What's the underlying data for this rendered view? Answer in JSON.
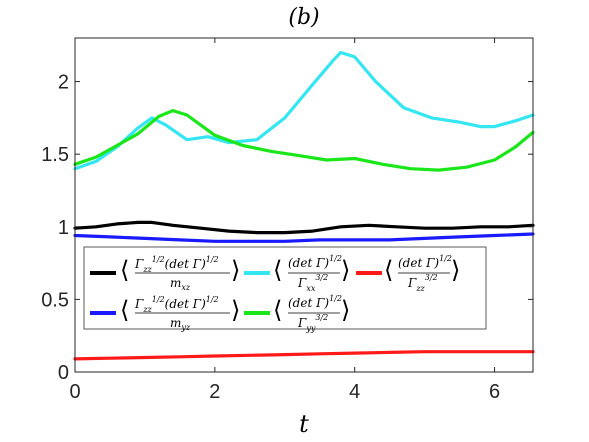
{
  "chart_data": {
    "type": "line",
    "title": "(b)",
    "xlabel": "t",
    "ylabel": "",
    "xlim": [
      0,
      6.55
    ],
    "ylim": [
      0,
      2.3
    ],
    "xticks": [
      0,
      2,
      4,
      6
    ],
    "yticks": [
      0,
      0.5,
      1,
      1.5,
      2
    ],
    "xtick_labels": [
      "0",
      "2",
      "4",
      "6"
    ],
    "ytick_labels": [
      "0",
      "0.5",
      "1",
      "1.5",
      "2"
    ],
    "grid": false,
    "legend_position": "lower-left",
    "series": [
      {
        "name": "⟨ Γzz^{1/2}(det Γ)^{1/2} / mxz ⟩",
        "color": "#000000",
        "x": [
          0,
          0.3,
          0.6,
          0.9,
          1.1,
          1.4,
          1.8,
          2.2,
          2.6,
          3.0,
          3.4,
          3.8,
          4.2,
          4.6,
          5.0,
          5.4,
          5.8,
          6.2,
          6.55
        ],
        "y": [
          0.99,
          1.0,
          1.02,
          1.03,
          1.03,
          1.01,
          0.99,
          0.97,
          0.96,
          0.96,
          0.97,
          1.0,
          1.01,
          1.0,
          0.99,
          0.99,
          1.0,
          1.0,
          1.01
        ]
      },
      {
        "name": "⟨ (det Γ)^{1/2} / Γxx^{3/2} ⟩",
        "color": "#33e6f2",
        "x": [
          0,
          0.3,
          0.6,
          0.9,
          1.1,
          1.3,
          1.6,
          1.9,
          2.2,
          2.6,
          3.0,
          3.4,
          3.7,
          3.8,
          4.0,
          4.3,
          4.7,
          5.1,
          5.5,
          5.8,
          6.0,
          6.3,
          6.55
        ],
        "y": [
          1.4,
          1.45,
          1.55,
          1.68,
          1.75,
          1.7,
          1.6,
          1.62,
          1.58,
          1.6,
          1.75,
          1.98,
          2.15,
          2.2,
          2.17,
          2.0,
          1.82,
          1.75,
          1.72,
          1.69,
          1.69,
          1.73,
          1.77
        ]
      },
      {
        "name": "⟨ (det Γ)^{1/2} / Γzz^{3/2} ⟩",
        "color": "#ff1a1a",
        "x": [
          0,
          0.5,
          1.0,
          1.5,
          2.0,
          2.5,
          3.0,
          3.5,
          4.0,
          4.5,
          5.0,
          5.5,
          6.0,
          6.55
        ],
        "y": [
          0.09,
          0.095,
          0.1,
          0.105,
          0.11,
          0.115,
          0.12,
          0.125,
          0.13,
          0.135,
          0.14,
          0.14,
          0.14,
          0.14
        ]
      },
      {
        "name": "⟨ Γzz^{1/2}(det Γ)^{1/2} / myz ⟩",
        "color": "#1a1aff",
        "x": [
          0,
          0.5,
          1.0,
          1.5,
          2.0,
          2.5,
          3.0,
          3.5,
          4.0,
          4.5,
          5.0,
          5.5,
          6.0,
          6.55
        ],
        "y": [
          0.94,
          0.93,
          0.92,
          0.91,
          0.9,
          0.9,
          0.9,
          0.91,
          0.91,
          0.91,
          0.92,
          0.93,
          0.94,
          0.95
        ]
      },
      {
        "name": "⟨ (det Γ)^{1/2} / Γyy^{3/2} ⟩",
        "color": "#1ae61a",
        "x": [
          0,
          0.3,
          0.6,
          0.9,
          1.2,
          1.4,
          1.6,
          2.0,
          2.4,
          2.8,
          3.2,
          3.6,
          4.0,
          4.4,
          4.8,
          5.2,
          5.6,
          6.0,
          6.3,
          6.55
        ],
        "y": [
          1.43,
          1.48,
          1.56,
          1.64,
          1.76,
          1.8,
          1.77,
          1.63,
          1.56,
          1.52,
          1.49,
          1.46,
          1.47,
          1.43,
          1.4,
          1.39,
          1.41,
          1.46,
          1.55,
          1.65
        ]
      }
    ]
  }
}
